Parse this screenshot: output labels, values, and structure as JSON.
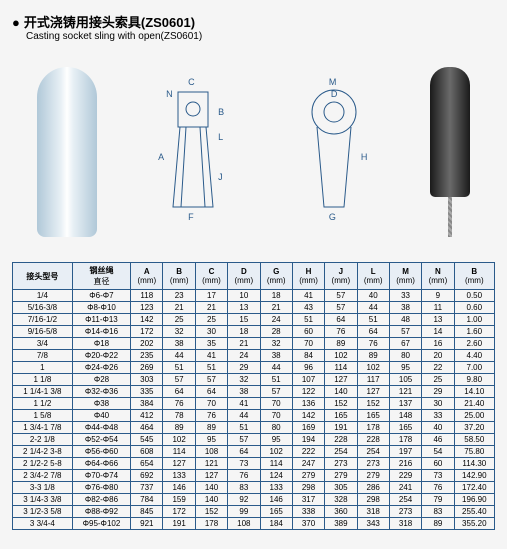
{
  "header": {
    "title_cn": "开式浇铸用接头索具(ZS0601)",
    "title_en": "Casting socket sling with open(ZS0601)"
  },
  "diagram_labels": [
    "C",
    "N",
    "B",
    "L",
    "A",
    "J",
    "F",
    "M",
    "D",
    "H",
    "G"
  ],
  "table": {
    "columns": [
      {
        "top": "接头型号",
        "sub": ""
      },
      {
        "top": "钢丝绳",
        "sub": "直径"
      },
      {
        "top": "A",
        "sub": "(mm)"
      },
      {
        "top": "B",
        "sub": "(mm)"
      },
      {
        "top": "C",
        "sub": "(mm)"
      },
      {
        "top": "D",
        "sub": "(mm)"
      },
      {
        "top": "G",
        "sub": "(mm)"
      },
      {
        "top": "H",
        "sub": "(mm)"
      },
      {
        "top": "J",
        "sub": "(mm)"
      },
      {
        "top": "L",
        "sub": "(mm)"
      },
      {
        "top": "M",
        "sub": "(mm)"
      },
      {
        "top": "N",
        "sub": "(mm)"
      },
      {
        "top": "B",
        "sub": "(mm)"
      }
    ],
    "rows": [
      [
        "1/4",
        "Φ6-Φ7",
        "118",
        "23",
        "17",
        "10",
        "18",
        "41",
        "57",
        "40",
        "33",
        "9",
        "0.50"
      ],
      [
        "5/16-3/8",
        "Φ8-Φ10",
        "123",
        "21",
        "21",
        "13",
        "21",
        "43",
        "57",
        "44",
        "38",
        "11",
        "0.60"
      ],
      [
        "7/16-1/2",
        "Φ11-Φ13",
        "142",
        "25",
        "25",
        "15",
        "24",
        "51",
        "64",
        "51",
        "48",
        "13",
        "1.00"
      ],
      [
        "9/16-5/8",
        "Φ14-Φ16",
        "172",
        "32",
        "30",
        "18",
        "28",
        "60",
        "76",
        "64",
        "57",
        "14",
        "1.60"
      ],
      [
        "3/4",
        "Φ18",
        "202",
        "38",
        "35",
        "21",
        "32",
        "70",
        "89",
        "76",
        "67",
        "16",
        "2.60"
      ],
      [
        "7/8",
        "Φ20-Φ22",
        "235",
        "44",
        "41",
        "24",
        "38",
        "84",
        "102",
        "89",
        "80",
        "20",
        "4.40"
      ],
      [
        "1",
        "Φ24-Φ26",
        "269",
        "51",
        "51",
        "29",
        "44",
        "96",
        "114",
        "102",
        "95",
        "22",
        "7.00"
      ],
      [
        "1 1/8",
        "Φ28",
        "303",
        "57",
        "57",
        "32",
        "51",
        "107",
        "127",
        "117",
        "105",
        "25",
        "9.80"
      ],
      [
        "1 1/4-1 3/8",
        "Φ32-Φ36",
        "335",
        "64",
        "64",
        "38",
        "57",
        "122",
        "140",
        "127",
        "121",
        "29",
        "14.10"
      ],
      [
        "1 1/2",
        "Φ38",
        "384",
        "76",
        "70",
        "41",
        "70",
        "136",
        "152",
        "152",
        "137",
        "30",
        "21.40"
      ],
      [
        "1 5/8",
        "Φ40",
        "412",
        "78",
        "76",
        "44",
        "70",
        "142",
        "165",
        "165",
        "148",
        "33",
        "25.00"
      ],
      [
        "1 3/4-1 7/8",
        "Φ44-Φ48",
        "464",
        "89",
        "89",
        "51",
        "80",
        "169",
        "191",
        "178",
        "165",
        "40",
        "37.20"
      ],
      [
        "2-2 1/8",
        "Φ52-Φ54",
        "545",
        "102",
        "95",
        "57",
        "95",
        "194",
        "228",
        "228",
        "178",
        "46",
        "58.50"
      ],
      [
        "2 1/4-2 3-8",
        "Φ56-Φ60",
        "608",
        "114",
        "108",
        "64",
        "102",
        "222",
        "254",
        "254",
        "197",
        "54",
        "75.80"
      ],
      [
        "2 1/2-2 5-8",
        "Φ64-Φ66",
        "654",
        "127",
        "121",
        "73",
        "114",
        "247",
        "273",
        "273",
        "216",
        "60",
        "114.30"
      ],
      [
        "2 3/4-2 7/8",
        "Φ70-Φ74",
        "692",
        "133",
        "127",
        "76",
        "124",
        "279",
        "279",
        "279",
        "229",
        "73",
        "142.90"
      ],
      [
        "3-3 1/8",
        "Φ76-Φ80",
        "737",
        "146",
        "140",
        "83",
        "133",
        "298",
        "305",
        "286",
        "241",
        "76",
        "172.40"
      ],
      [
        "3 1/4-3 3/8",
        "Φ82-Φ86",
        "784",
        "159",
        "140",
        "92",
        "146",
        "317",
        "328",
        "298",
        "254",
        "79",
        "196.90"
      ],
      [
        "3 1/2-3 5/8",
        "Φ88-Φ92",
        "845",
        "172",
        "152",
        "99",
        "165",
        "338",
        "360",
        "318",
        "273",
        "83",
        "255.40"
      ],
      [
        "3 3/4-4",
        "Φ95-Φ102",
        "921",
        "191",
        "178",
        "108",
        "184",
        "370",
        "389",
        "343",
        "318",
        "89",
        "355.20"
      ]
    ]
  },
  "colors": {
    "border": "#2a5a8a",
    "header_bg": "#e8eef5",
    "page_bg": "#f5f5f5"
  }
}
